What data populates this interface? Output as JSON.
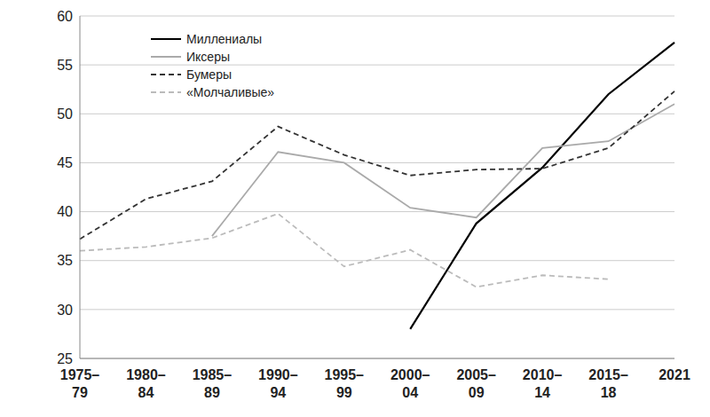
{
  "chart_data": {
    "type": "line",
    "categories": [
      "1975–79",
      "1980–84",
      "1985–89",
      "1990–94",
      "1995–99",
      "2000–04",
      "2005–09",
      "2010–14",
      "2015–18",
      "2021"
    ],
    "series": [
      {
        "name": "Миллениалы",
        "color": "#000000",
        "line_style": "solid",
        "values": [
          null,
          null,
          null,
          null,
          null,
          28,
          38.8,
          44.5,
          52,
          57.3
        ]
      },
      {
        "name": "Иксеры",
        "color": "#aaaaaa",
        "line_style": "solid",
        "values": [
          null,
          null,
          37.5,
          46.1,
          45,
          40.4,
          39.4,
          46.5,
          47.2,
          51
        ]
      },
      {
        "name": "Бумеры",
        "color": "#333333",
        "line_style": "dashed",
        "values": [
          37.2,
          41.3,
          43.1,
          48.7,
          45.8,
          43.7,
          44.3,
          44.4,
          46.5,
          52.3
        ]
      },
      {
        "name": "«Молчаливые»",
        "color": "#bbbbbb",
        "line_style": "dashed",
        "values": [
          36,
          36.4,
          37.3,
          39.8,
          34.4,
          36.1,
          32.3,
          33.5,
          33.1,
          null
        ]
      }
    ],
    "ylim": [
      25,
      60
    ],
    "yticks": [
      25,
      30,
      35,
      40,
      45,
      50,
      55,
      60
    ],
    "grid": true,
    "legend": "upper left"
  }
}
